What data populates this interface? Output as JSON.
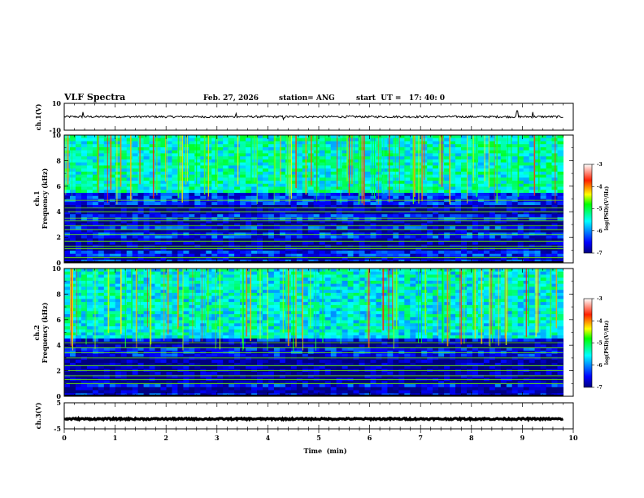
{
  "chart_data": {
    "type": "heatmap",
    "title": "VLF Spectra",
    "date": "Feb. 27, 2026",
    "station": "station= ANG",
    "start_time": "start  UT =   17: 40: 0",
    "xlabel": "Time  (min)",
    "xlim": [
      0,
      10
    ],
    "x_ticks": [
      "0",
      "1",
      "2",
      "3",
      "4",
      "5",
      "6",
      "7",
      "8",
      "9",
      "10"
    ],
    "data_end_min": 9.8,
    "panels": [
      {
        "name": "ch1-waveform",
        "type": "line",
        "ylabel": "ch.1(V)",
        "ylim": [
          -10,
          10
        ],
        "y_ticks": [
          "10",
          "-10"
        ],
        "baseline": 0,
        "noise_amplitude": 0.8,
        "spikes": [
          {
            "x": 0.37,
            "value": 3.5
          },
          {
            "x": 3.38,
            "value": 2.5
          },
          {
            "x": 4.3,
            "value": -2.0
          },
          {
            "x": 8.9,
            "value": 4.5
          },
          {
            "x": 9.2,
            "value": 3.5
          }
        ]
      },
      {
        "name": "ch1-spectrogram",
        "type": "heatmap",
        "ylabel_top": "ch.1",
        "ylabel": "Frequency  (kHz)",
        "ylim": [
          0,
          10
        ],
        "y_ticks": [
          "0",
          "2",
          "4",
          "6",
          "8",
          "10"
        ],
        "colorbar": {
          "label": "log(PSD)(V²/Hz)",
          "range": [
            -7,
            -3
          ],
          "ticks": [
            "-3",
            "-4",
            "-5",
            "-6",
            "-7"
          ]
        },
        "upper_band_log_psd": -5.4,
        "lower_band_log_psd": -6.4,
        "band_boundary_khz": 5.5,
        "dark_bands_khz": [
          [
            3.9,
            4.5
          ],
          [
            2.9,
            3.3
          ],
          [
            2.3,
            2.5
          ],
          [
            0.9,
            2.0
          ],
          [
            0.2,
            0.5
          ]
        ],
        "tone_lines_khz": [
          0.4,
          1.1,
          1.3,
          1.7,
          2.2,
          2.6,
          2.9,
          3.3,
          3.5,
          4.0,
          4.3,
          4.9
        ]
      },
      {
        "name": "ch2-spectrogram",
        "type": "heatmap",
        "ylabel_top": "ch.2",
        "ylabel": "Frequency  (kHz)",
        "ylim": [
          0,
          10
        ],
        "y_ticks": [
          "0",
          "2",
          "4",
          "6",
          "8",
          "10"
        ],
        "colorbar": {
          "label": "log(PSD)(V²/Hz)",
          "range": [
            -7,
            -3
          ],
          "ticks": [
            "-3",
            "-4",
            "-5",
            "-6",
            "-7"
          ]
        },
        "upper_band_log_psd": -5.5,
        "lower_band_log_psd": -6.5,
        "band_boundary_khz": 4.5,
        "dark_bands_khz": [
          [
            3.8,
            4.3
          ],
          [
            2.5,
            3.1
          ],
          [
            1.0,
            2.3
          ],
          [
            0.2,
            0.6
          ]
        ],
        "tone_lines_khz": [
          1.0,
          1.3,
          1.6,
          2.0,
          2.4,
          3.0,
          3.4,
          3.8,
          4.2
        ]
      },
      {
        "name": "ch3-waveform",
        "type": "line",
        "ylabel": "ch.3(V)",
        "ylim": [
          -5,
          5
        ],
        "y_ticks": [
          "5",
          "-5"
        ],
        "baseline": -1.2,
        "noise_amplitude": 0.3,
        "spikes": []
      }
    ]
  }
}
